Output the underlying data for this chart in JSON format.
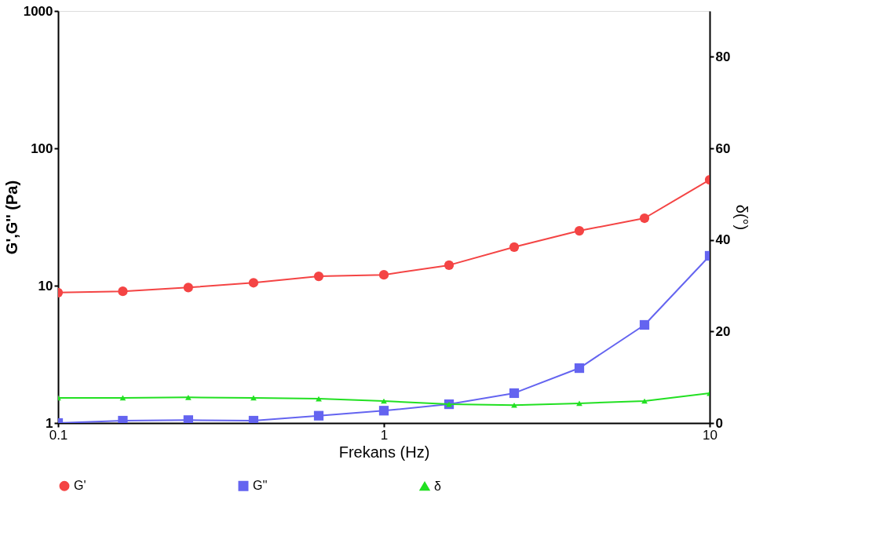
{
  "chart_data": {
    "type": "line",
    "xlabel": "Frekans (Hz)",
    "ylabel": "G',G'' (Pa)",
    "y2label": "δ(°)",
    "log": "xy",
    "x": [
      0.1,
      0.158,
      0.251,
      0.398,
      0.631,
      1,
      1.585,
      2.512,
      3.981,
      6.31,
      10
    ],
    "xlim": [
      0.1,
      10
    ],
    "xticks": [
      0.1,
      1,
      10
    ],
    "ylim": [
      1,
      1000
    ],
    "yticks": [
      1,
      10,
      100,
      1000
    ],
    "y2lim": [
      0,
      90
    ],
    "y2ticks": [
      0,
      20,
      40,
      60,
      80
    ],
    "grid": false,
    "legend": "bottom",
    "series": [
      {
        "name": "G'",
        "color": "#f44444",
        "marker": "circle",
        "values": [
          8.9,
          9.1,
          9.7,
          10.5,
          11.7,
          12.0,
          14.1,
          19.1,
          25.1,
          31.0,
          59
        ]
      },
      {
        "name": "G''",
        "color": "#6464f0",
        "marker": "square",
        "values": [
          1.0,
          1.04,
          1.05,
          1.04,
          1.13,
          1.23,
          1.37,
          1.65,
          2.51,
          5.18,
          16.5
        ]
      },
      {
        "name": "δ",
        "color": "#22e022",
        "marker": "triangle",
        "axis": "y2",
        "values": [
          5.5,
          5.5,
          5.6,
          5.5,
          5.3,
          4.8,
          4.1,
          3.9,
          4.3,
          4.8,
          6.5
        ]
      }
    ]
  }
}
